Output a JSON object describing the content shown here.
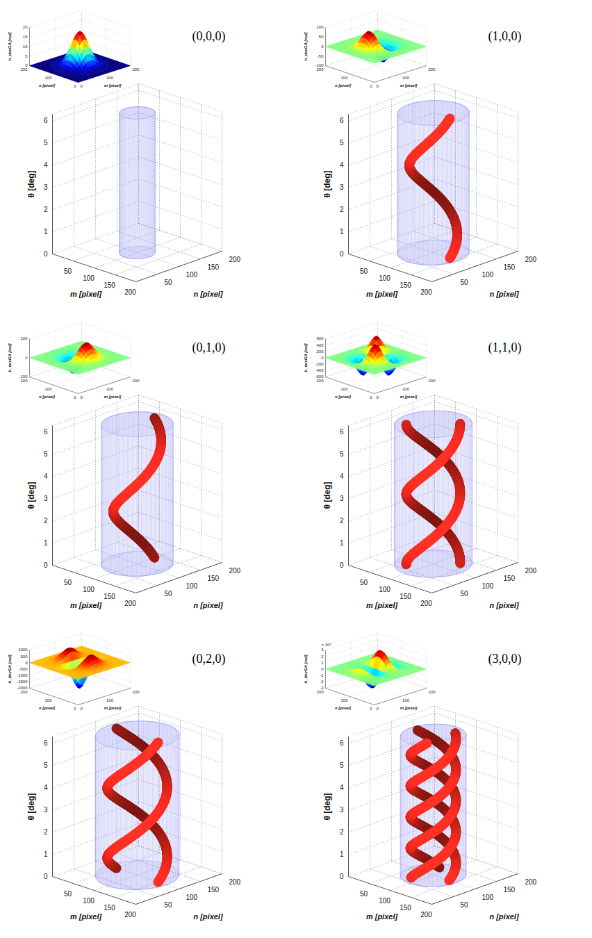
{
  "chart_data": [
    {
      "type": "helix3d",
      "title": "(0,0,0)",
      "xlabel": "m [pixel]",
      "ylabel": "n [pixel]",
      "zlabel": "θ [deg]",
      "xlim": [
        0,
        200
      ],
      "xticks": [
        50,
        100,
        150,
        200
      ],
      "ylim": [
        0,
        200
      ],
      "yticks": [
        50,
        100,
        150,
        200
      ],
      "zlim": [
        0,
        6.3
      ],
      "zticks": [
        0,
        1,
        2,
        3,
        4,
        5,
        6
      ],
      "grid": true,
      "cylinder": {
        "center": [
          100,
          100
        ],
        "radius": 30,
        "color": "#8c8cf0"
      },
      "inset": {
        "type": "surface",
        "xlabel": "m [pixel]",
        "ylabel": "n [pixel]",
        "zlabel": "h_devGA [rad]",
        "xlim": [
          0,
          200
        ],
        "xticks": [
          0,
          100,
          200
        ],
        "ylim": [
          0,
          200
        ],
        "yticks": [
          0,
          100,
          200
        ],
        "zlim": [
          0,
          20
        ],
        "zticks": [
          0,
          5,
          10,
          15,
          20
        ],
        "order": [
          0,
          0
        ],
        "center": [
          100,
          100
        ],
        "sigma": 25,
        "amplitude": 18
      }
    },
    {
      "type": "helix3d",
      "title": "(1,0,0)",
      "xlabel": "m [pixel]",
      "ylabel": "n [pixel]",
      "zlabel": "θ [deg]",
      "xlim": [
        0,
        200
      ],
      "xticks": [
        50,
        100,
        150,
        200
      ],
      "ylim": [
        0,
        200
      ],
      "yticks": [
        50,
        100,
        150,
        200
      ],
      "zlim": [
        0,
        6.3
      ],
      "zticks": [
        0,
        1,
        2,
        3,
        4,
        5,
        6
      ],
      "grid": true,
      "cylinder": {
        "center": [
          100,
          100
        ],
        "radius": 60,
        "color": "#8c8cf0"
      },
      "helix": {
        "count": 1,
        "radius": 40,
        "turns": 1,
        "phase": 0,
        "color": "#e8281e"
      },
      "inset": {
        "type": "surface",
        "xlabel": "m [pixel]",
        "ylabel": "n [pixel]",
        "zlabel": "h_devGA [rad]",
        "xlim": [
          0,
          200
        ],
        "xticks": [
          0,
          100,
          200
        ],
        "ylim": [
          0,
          200
        ],
        "yticks": [
          0,
          100,
          200
        ],
        "zlim": [
          -100,
          100
        ],
        "zticks": [
          -100,
          -50,
          0,
          50,
          100
        ],
        "order": [
          1,
          0
        ],
        "center": [
          100,
          100
        ],
        "sigma": 25,
        "amplitude": 150
      }
    },
    {
      "type": "helix3d",
      "title": "(0,1,0)",
      "xlabel": "m [pixel]",
      "ylabel": "n [pixel]",
      "zlabel": "θ [deg]",
      "xlim": [
        0,
        200
      ],
      "xticks": [
        50,
        100,
        150,
        200
      ],
      "ylim": [
        0,
        200
      ],
      "yticks": [
        50,
        100,
        150,
        200
      ],
      "zlim": [
        0,
        6.3
      ],
      "zticks": [
        0,
        1,
        2,
        3,
        4,
        5,
        6
      ],
      "grid": true,
      "cylinder": {
        "center": [
          100,
          100
        ],
        "radius": 60,
        "color": "#8c8cf0"
      },
      "helix": {
        "count": 1,
        "radius": 40,
        "turns": 1,
        "phase": 90,
        "color": "#e8281e"
      },
      "inset": {
        "type": "surface",
        "xlabel": "m [pixel]",
        "ylabel": "n [pixel]",
        "zlabel": "h_devGA [rad]",
        "xlim": [
          0,
          200
        ],
        "xticks": [
          0,
          100,
          200
        ],
        "ylim": [
          0,
          200
        ],
        "yticks": [
          0,
          100,
          200
        ],
        "zlim": [
          -100,
          100
        ],
        "zticks": [
          -100,
          0,
          100
        ],
        "order": [
          0,
          1
        ],
        "center": [
          100,
          100
        ],
        "sigma": 25,
        "amplitude": 150
      }
    },
    {
      "type": "helix3d",
      "title": "(1,1,0)",
      "xlabel": "m [pixel]",
      "ylabel": "n [pixel]",
      "zlabel": "θ [deg]",
      "xlim": [
        0,
        200
      ],
      "xticks": [
        50,
        100,
        150,
        200
      ],
      "ylim": [
        0,
        200
      ],
      "yticks": [
        50,
        100,
        150,
        200
      ],
      "zlim": [
        0,
        6.3
      ],
      "zticks": [
        0,
        1,
        2,
        3,
        4,
        5,
        6
      ],
      "grid": true,
      "cylinder": {
        "center": [
          100,
          100
        ],
        "radius": 65,
        "color": "#8c8cf0"
      },
      "helix": {
        "count": 2,
        "radius": 45,
        "turns": 1,
        "phase": 45,
        "color": "#e8281e"
      },
      "inset": {
        "type": "surface",
        "xlabel": "m [pixel]",
        "ylabel": "n [pixel]",
        "zlabel": "h_devGA [rad]",
        "xlim": [
          0,
          200
        ],
        "xticks": [
          0,
          100,
          200
        ],
        "ylim": [
          0,
          200
        ],
        "yticks": [
          0,
          100,
          200
        ],
        "zlim": [
          -600,
          600
        ],
        "zticks": [
          -600,
          -400,
          -200,
          0,
          200,
          400,
          600
        ],
        "order": [
          1,
          1
        ],
        "center": [
          100,
          100
        ],
        "sigma": 25,
        "amplitude": 1500
      }
    },
    {
      "type": "helix3d",
      "title": "(0,2,0)",
      "xlabel": "m [pixel]",
      "ylabel": "n [pixel]",
      "zlabel": "θ [deg]",
      "xlim": [
        0,
        200
      ],
      "xticks": [
        50,
        100,
        150,
        200
      ],
      "ylim": [
        0,
        200
      ],
      "yticks": [
        50,
        100,
        150,
        200
      ],
      "zlim": [
        0,
        6.3
      ],
      "zticks": [
        0,
        1,
        2,
        3,
        4,
        5,
        6
      ],
      "grid": true,
      "cylinder": {
        "center": [
          100,
          100
        ],
        "radius": 70,
        "color": "#8c8cf0"
      },
      "helix": {
        "count": 2,
        "radius": 50,
        "turns": 1,
        "phase": 0,
        "color": "#e8281e"
      },
      "inset": {
        "type": "surface",
        "xlabel": "m [pixel]",
        "ylabel": "n [pixel]",
        "zlabel": "h_devGA [rad]",
        "xlim": [
          0,
          200
        ],
        "xticks": [
          0,
          100,
          200
        ],
        "ylim": [
          0,
          200
        ],
        "yticks": [
          0,
          100,
          200
        ],
        "zlim": [
          -2000,
          1000
        ],
        "zticks": [
          -2000,
          -1500,
          -1000,
          -500,
          0,
          500,
          1000
        ],
        "order": [
          0,
          2
        ],
        "center": [
          100,
          100
        ],
        "sigma": 25,
        "amplitude": 2000
      }
    },
    {
      "type": "helix3d",
      "title": "(3,0,0)",
      "xlabel": "m [pixel]",
      "ylabel": "n [pixel]",
      "zlabel": "θ [deg]",
      "xlim": [
        0,
        200
      ],
      "xticks": [
        50,
        100,
        150,
        200
      ],
      "ylim": [
        0,
        200
      ],
      "yticks": [
        50,
        100,
        150,
        200
      ],
      "zlim": [
        0,
        6.3
      ],
      "zticks": [
        0,
        1,
        2,
        3,
        4,
        5,
        6
      ],
      "grid": true,
      "cylinder": {
        "center": [
          100,
          100
        ],
        "radius": 55,
        "color": "#8c8cf0"
      },
      "helix": {
        "count": 3,
        "radius": 38,
        "turns": 1.5,
        "phase": 0,
        "color": "#e8281e"
      },
      "inset": {
        "type": "surface",
        "xlabel": "m [pixel]",
        "ylabel": "n [pixel]",
        "zlabel": "h_devGA [rad]",
        "xlim": [
          0,
          200
        ],
        "xticks": [
          0,
          100,
          200
        ],
        "ylim": [
          0,
          200
        ],
        "yticks": [
          0,
          100,
          200
        ],
        "zlim": [
          -30000,
          30000
        ],
        "zticks": [
          {
            "value": -30000,
            "label": "-3"
          },
          {
            "value": -20000,
            "label": "-2"
          },
          {
            "value": -10000,
            "label": "-1"
          },
          {
            "value": 0,
            "label": "0"
          },
          {
            "value": 10000,
            "label": "1"
          },
          {
            "value": 20000,
            "label": "2"
          },
          {
            "value": 30000,
            "label": "3"
          }
        ],
        "zscale_label": "× 10⁴",
        "order": [
          3,
          0
        ],
        "center": [
          100,
          100
        ],
        "sigma": 25,
        "amplitude": 20000
      }
    }
  ]
}
